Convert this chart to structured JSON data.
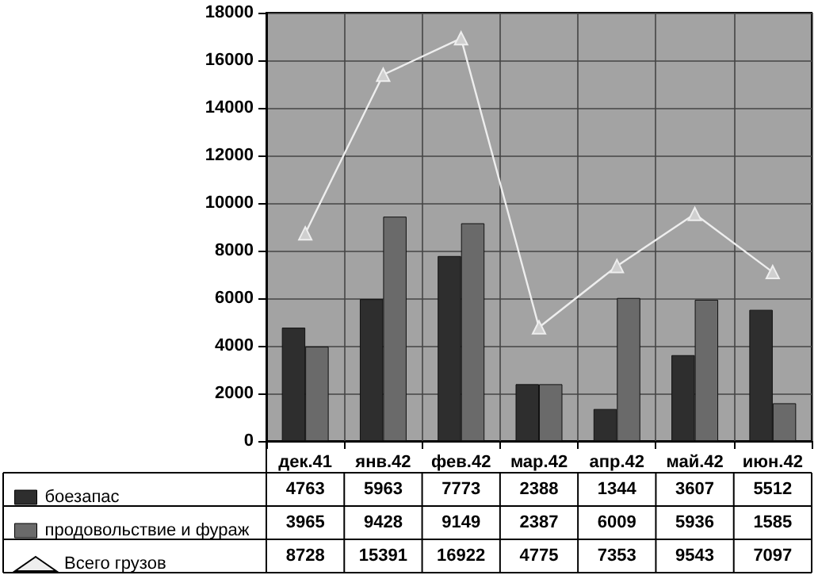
{
  "chart_data": {
    "type": "bar",
    "categories": [
      "дек.41",
      "янв.42",
      "фев.42",
      "мар.42",
      "апр.42",
      "май.42",
      "июн.42"
    ],
    "series": [
      {
        "name": "боезапас",
        "color": "#2e2e2e",
        "values": [
          4763,
          5963,
          7773,
          2388,
          1344,
          3607,
          5512
        ]
      },
      {
        "name": "продовольствие и фураж",
        "color": "#6a6a6a",
        "values": [
          3965,
          9428,
          9149,
          2387,
          6009,
          5936,
          1585
        ]
      },
      {
        "name": "Всего грузов",
        "type": "line",
        "color": "#eeeeee",
        "values": [
          8728,
          15391,
          16922,
          4775,
          7353,
          9543,
          7097
        ]
      }
    ],
    "ylim": [
      0,
      18000
    ],
    "yticks": [
      0,
      2000,
      4000,
      6000,
      8000,
      10000,
      12000,
      14000,
      16000,
      18000
    ],
    "grid": true,
    "legend": "bottom",
    "marker": "triangle",
    "data_labels": true
  }
}
